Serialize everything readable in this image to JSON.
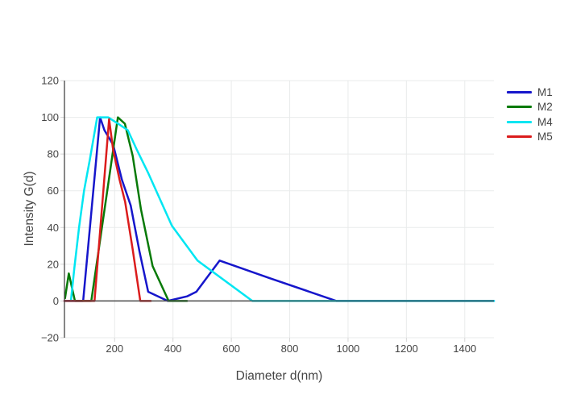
{
  "chart_data": {
    "type": "line",
    "title": "",
    "xlabel": "Diameter d(nm)",
    "ylabel": "Intensity G(d)",
    "xlim": [
      28,
      1500
    ],
    "ylim": [
      -20,
      120
    ],
    "grid": true,
    "legend_position": "right-outside",
    "xaxis_ticks": {
      "values": [
        200,
        400,
        600,
        800,
        1000,
        1200,
        1400
      ],
      "labels": [
        "200",
        "400",
        "600",
        "800",
        "1000",
        "1200",
        "1400"
      ]
    },
    "yaxis_ticks": {
      "values": [
        -20,
        0,
        20,
        40,
        60,
        80,
        100,
        120
      ],
      "labels": [
        "−20",
        "0",
        "20",
        "40",
        "60",
        "80",
        "100",
        "120"
      ]
    },
    "series": [
      {
        "name": "M1",
        "color": "#1616CB",
        "x": [
          28,
          92,
          150,
          165,
          195,
          225,
          255,
          285,
          315,
          382,
          448,
          480,
          560,
          730,
          960,
          1500
        ],
        "y": [
          0,
          0,
          100,
          93,
          85,
          66,
          52,
          27,
          5,
          0,
          2.5,
          5,
          22,
          12.5,
          0,
          0
        ]
      },
      {
        "name": "M2",
        "color": "#087A08",
        "x": [
          30,
          43,
          64,
          120,
          211,
          235,
          262,
          290,
          330,
          385,
          448
        ],
        "y": [
          1.5,
          15,
          0,
          0,
          100,
          96.5,
          79,
          50,
          19,
          0,
          0
        ]
      },
      {
        "name": "M4",
        "color": "#00E6F2",
        "x": [
          50,
          62,
          78,
          95,
          115,
          140,
          178,
          217,
          245,
          277,
          314,
          396,
          484,
          672,
          1500
        ],
        "y": [
          0,
          18,
          40,
          60,
          77,
          100,
          100,
          96,
          93,
          82,
          70,
          41,
          22,
          0,
          0
        ]
      },
      {
        "name": "M5",
        "color": "#DB1C1C",
        "x": [
          28,
          131,
          181,
          195,
          217,
          236,
          262,
          288,
          324
        ],
        "y": [
          0,
          0,
          99,
          82,
          66,
          54,
          28,
          0,
          0
        ]
      }
    ]
  },
  "colors": {
    "background": "#FFFFFF",
    "grid": "#E9EBEB",
    "tick": "#D6D6D6",
    "axis_line": "#444444",
    "zero_line": "#4A4A4A",
    "tick_label": "#444444",
    "axis_title": "#444444",
    "legend_text": "#444444"
  }
}
